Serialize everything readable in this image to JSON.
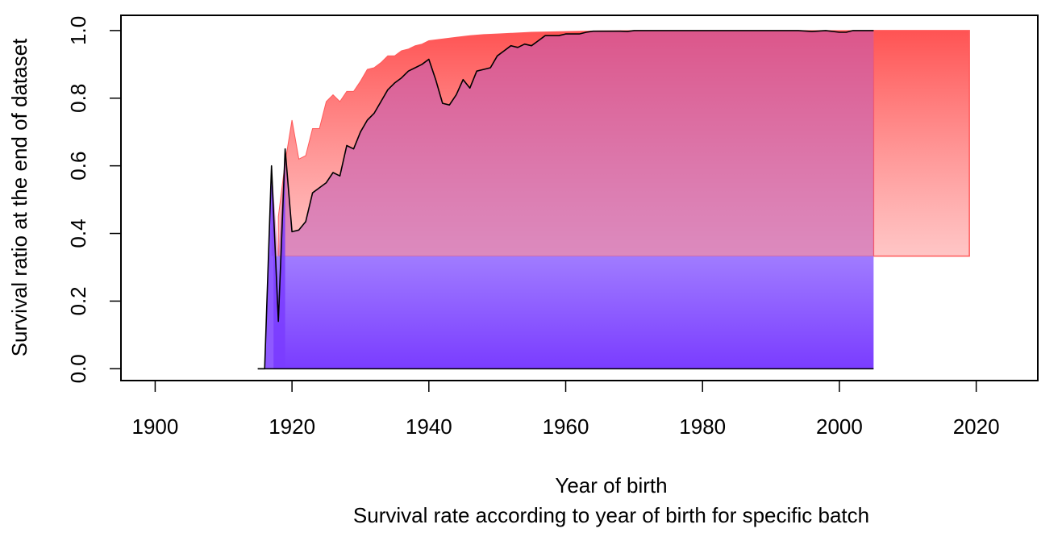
{
  "chart_data": {
    "type": "area",
    "xlabel": "Year of birth",
    "subtitle": "Survival rate according to year of birth for specific batch",
    "ylabel": "Survival ratio at the end of dataset",
    "xlim": [
      1895,
      2029
    ],
    "ylim": [
      -0.035,
      1.045
    ],
    "x_ticks": [
      1900,
      1920,
      1940,
      1960,
      1980,
      2000,
      2020
    ],
    "y_ticks": [
      0.0,
      0.2,
      0.4,
      0.6,
      0.8,
      1.0
    ],
    "y_tick_labels": [
      "0.0",
      "0.2",
      "0.4",
      "0.6",
      "0.8",
      "1.0"
    ],
    "colors": {
      "blue_top": "#a07cff",
      "blue_bottom": "#7a3cff",
      "red_top": "#ff4a4a",
      "red_bottom": "#ffb3b3",
      "red_edge": "#ff5a5a",
      "line": "#000000"
    },
    "baseline_fill_level": 0.333,
    "series": [
      {
        "name": "survival ratio (black line)",
        "x": [
          1915,
          1916,
          1917,
          1918,
          1919,
          1920,
          1921,
          1922,
          1923,
          1924,
          1925,
          1926,
          1927,
          1928,
          1929,
          1930,
          1931,
          1932,
          1933,
          1934,
          1935,
          1936,
          1937,
          1938,
          1939,
          1940,
          1941,
          1942,
          1943,
          1944,
          1945,
          1946,
          1947,
          1948,
          1949,
          1950,
          1951,
          1952,
          1953,
          1954,
          1955,
          1956,
          1957,
          1958,
          1959,
          1960,
          1961,
          1962,
          1963,
          1964,
          1965,
          1966,
          1967,
          1968,
          1969,
          1970,
          1975,
          1980,
          1985,
          1990,
          1994,
          1996,
          1998,
          2000,
          2001,
          2002,
          2005
        ],
        "values": [
          0.0,
          0.0,
          0.6,
          0.14,
          0.65,
          0.405,
          0.41,
          0.435,
          0.52,
          0.535,
          0.55,
          0.58,
          0.57,
          0.66,
          0.65,
          0.7,
          0.735,
          0.755,
          0.79,
          0.825,
          0.845,
          0.86,
          0.88,
          0.89,
          0.9,
          0.915,
          0.855,
          0.785,
          0.78,
          0.81,
          0.855,
          0.83,
          0.88,
          0.885,
          0.89,
          0.925,
          0.94,
          0.955,
          0.95,
          0.96,
          0.955,
          0.97,
          0.985,
          0.985,
          0.985,
          0.99,
          0.99,
          0.99,
          0.995,
          0.998,
          0.998,
          0.998,
          0.998,
          0.998,
          0.997,
          1.0,
          1.0,
          1.0,
          1.0,
          1.0,
          1.0,
          0.997,
          1.0,
          0.995,
          0.995,
          1.0,
          1.0
        ]
      },
      {
        "name": "upper envelope (red area)",
        "x": [
          1918,
          1919,
          1920,
          1921,
          1922,
          1923,
          1924,
          1925,
          1926,
          1927,
          1928,
          1929,
          1930,
          1931,
          1932,
          1933,
          1934,
          1935,
          1936,
          1937,
          1938,
          1939,
          1940,
          1942,
          1944,
          1946,
          1948,
          1950,
          1955,
          1960,
          1965,
          1970,
          2005
        ],
        "values": [
          0.45,
          0.61,
          0.735,
          0.62,
          0.63,
          0.71,
          0.71,
          0.79,
          0.81,
          0.79,
          0.82,
          0.82,
          0.85,
          0.885,
          0.89,
          0.905,
          0.925,
          0.925,
          0.94,
          0.945,
          0.955,
          0.96,
          0.97,
          0.975,
          0.98,
          0.985,
          0.988,
          0.99,
          0.995,
          0.997,
          0.999,
          1.0,
          1.0
        ]
      },
      {
        "name": "projected band (red rectangle)",
        "x": [
          2005,
          2019
        ],
        "values": [
          1.0,
          1.0
        ],
        "lower": 0.333
      }
    ]
  }
}
